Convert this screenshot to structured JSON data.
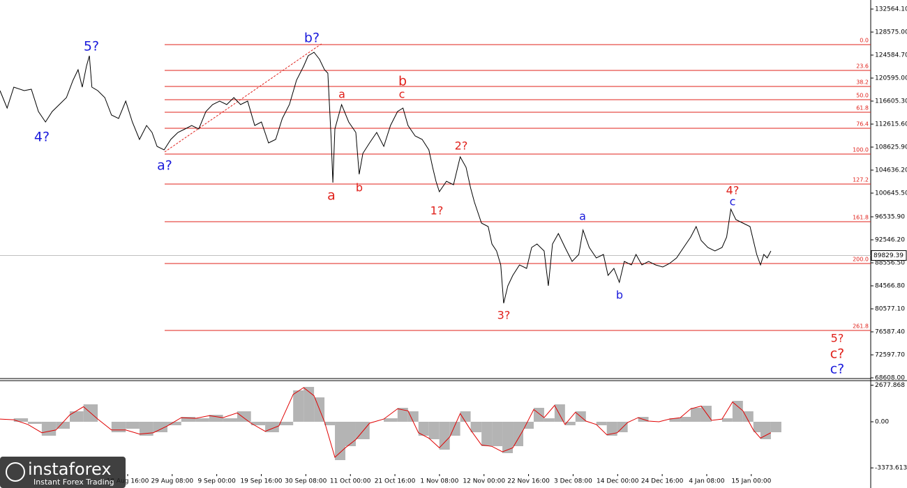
{
  "chart_data": [
    {
      "type": "line",
      "color": "#000000",
      "x": [
        -29.9,
        -28.2,
        -26.6,
        -24.1,
        -22.4,
        -20.7,
        -19.0,
        -17.4,
        -15.7,
        -14.0,
        -12.4,
        -11.2,
        -10.2,
        -9.2,
        -8.5,
        -7.9,
        -6.5,
        -4.8,
        -3.2,
        -1.5,
        0.2,
        1.8,
        3.5,
        5.2,
        6.5,
        7.7,
        9.4,
        11.0,
        12.7,
        14.4,
        16.0,
        17.7,
        19.4,
        21.0,
        22.7,
        24.4,
        26.1,
        27.7,
        29.4,
        31.1,
        32.7,
        34.4,
        36.1,
        37.7,
        39.4,
        41.1,
        42.8,
        43.9,
        45.3,
        46.6,
        47.8,
        48.6,
        49.4,
        49.8,
        50.3,
        51.9,
        53.6,
        55.3,
        56.1,
        57.0,
        58.6,
        60.3,
        62.0,
        63.6,
        65.3,
        66.6,
        67.8,
        69.5,
        71.2,
        72.8,
        73.7,
        74.5,
        75.3,
        77.0,
        78.7,
        80.3,
        81.7,
        82.8,
        83.7,
        85.4,
        87.0,
        87.9,
        89.0,
        90.0,
        90.7,
        91.7,
        92.9,
        94.5,
        96.2,
        97.4,
        98.7,
        100.4,
        101.4,
        102.4,
        103.8,
        105.4,
        107.1,
        108.7,
        109.7,
        111.2,
        112.9,
        114.6,
        115.7,
        117.1,
        118.4,
        119.6,
        121.3,
        122.4,
        123.8,
        125.4,
        127.1,
        128.8,
        130.4,
        132.1,
        133.8,
        135.5,
        136.8,
        138.0,
        139.6,
        141.3,
        143.0,
        144.1,
        145.1,
        146.3,
        148.0,
        149.7,
        150.5,
        151.3,
        152.2,
        153.0,
        153.8,
        154.7
      ],
      "values": [
        118420,
        115400,
        119020,
        118420,
        118660,
        114790,
        112980,
        114790,
        116000,
        117210,
        120230,
        122050,
        119020,
        122650,
        124460,
        119020,
        118420,
        117210,
        114190,
        113580,
        116610,
        112980,
        109960,
        112370,
        111170,
        108750,
        108140,
        109960,
        111170,
        111770,
        112370,
        111770,
        114790,
        116000,
        116610,
        116000,
        117210,
        116000,
        116610,
        112370,
        112980,
        109350,
        109960,
        113580,
        116000,
        120230,
        122650,
        124460,
        125070,
        123860,
        122050,
        121440,
        109960,
        102460,
        111770,
        116000,
        112980,
        111170,
        103910,
        107540,
        109350,
        111170,
        108750,
        112370,
        114790,
        115400,
        112370,
        110560,
        109960,
        108140,
        105120,
        102700,
        100890,
        102700,
        102100,
        106930,
        105120,
        101490,
        99080,
        95450,
        94840,
        91820,
        90610,
        88190,
        81540,
        84570,
        86380,
        88190,
        87590,
        91220,
        91820,
        90610,
        84570,
        91820,
        93630,
        91220,
        88800,
        90010,
        94240,
        91220,
        89400,
        90010,
        86380,
        87590,
        85170,
        88800,
        88190,
        90010,
        88190,
        88800,
        88190,
        87830,
        88440,
        89400,
        91220,
        93030,
        94840,
        92430,
        91220,
        90610,
        91220,
        93030,
        97870,
        96050,
        95450,
        94840,
        92430,
        90010,
        88190,
        90010,
        89400,
        90610
      ],
      "xlim": [
        -29.9,
        178.6
      ],
      "ylim": [
        68487,
        134136
      ],
      "yticks": [
        {
          "value": 132564.1,
          "label": "132564.10"
        },
        {
          "value": 128575,
          "label": "128575.00"
        },
        {
          "value": 124584.7,
          "label": "124584.70"
        },
        {
          "value": 120595,
          "label": "120595.00"
        },
        {
          "value": 116605.3,
          "label": "116605.30"
        },
        {
          "value": 112615.6,
          "label": "112615.60"
        },
        {
          "value": 108625.9,
          "label": "108625.90"
        },
        {
          "value": 104636.2,
          "label": "104636.20"
        },
        {
          "value": 100645.5,
          "label": "100645.50"
        },
        {
          "value": 96535.9,
          "label": "96535.90"
        },
        {
          "value": 92546.2,
          "label": "92546.20"
        },
        {
          "value": 88556.5,
          "label": "88556.50"
        },
        {
          "value": 84566.8,
          "label": "84566.80"
        },
        {
          "value": 80577.1,
          "label": "80577.10"
        },
        {
          "value": 76587.4,
          "label": "76587.40"
        },
        {
          "value": 72597.7,
          "label": "72597.70"
        },
        {
          "value": 68608,
          "label": "68608.00"
        }
      ],
      "xticks": [
        {
          "value": 0.667,
          "label": "18 Aug 16:00"
        },
        {
          "value": 11.333,
          "label": "29 Aug 08:00"
        },
        {
          "value": 22,
          "label": "9 Sep 00:00"
        },
        {
          "value": 32.667,
          "label": "19 Sep 16:00"
        },
        {
          "value": 43.333,
          "label": "30 Sep 08:00"
        },
        {
          "value": 54,
          "label": "11 Oct 00:00"
        },
        {
          "value": 64.667,
          "label": "21 Oct 16:00"
        },
        {
          "value": 75.333,
          "label": "1 Nov 08:00"
        },
        {
          "value": 86,
          "label": "12 Nov 00:00"
        },
        {
          "value": 96.667,
          "label": "22 Nov 16:00"
        },
        {
          "value": 107.333,
          "label": "3 Dec 08:00"
        },
        {
          "value": 118,
          "label": "14 Dec 00:00"
        },
        {
          "value": 128.667,
          "label": "24 Dec 16:00"
        },
        {
          "value": 139.333,
          "label": "4 Jan 08:00"
        },
        {
          "value": 150,
          "label": "15 Jan 00:00"
        }
      ],
      "current_price": 89829.39,
      "fib_color": "#e0201a",
      "fib_levels": [
        {
          "label": "0.0",
          "value": 126398
        },
        {
          "label": "23.6",
          "value": 121925
        },
        {
          "label": "38.2",
          "value": 119144
        },
        {
          "label": "50.0",
          "value": 116847
        },
        {
          "label": "61.8",
          "value": 114671
        },
        {
          "label": "76.4",
          "value": 111890
        },
        {
          "label": "100.0",
          "value": 107417
        },
        {
          "label": "127.2",
          "value": 102218
        },
        {
          "label": "161.8",
          "value": 95690
        },
        {
          "label": "200.0",
          "value": 88436
        },
        {
          "label": "261.8",
          "value": 76830
        }
      ],
      "annotations": [
        {
          "text": "5?",
          "color": "#1a1adb"
        },
        {
          "text": "4?",
          "color": "#1a1adb"
        },
        {
          "text": "a?",
          "color": "#1a1adb"
        },
        {
          "text": "b?",
          "color": "#1a1adb"
        },
        {
          "text": "a",
          "color": "#e0201a"
        },
        {
          "text": "a",
          "color": "#e0201a"
        },
        {
          "text": "b",
          "color": "#e0201a"
        },
        {
          "text": "b",
          "color": "#e0201a"
        },
        {
          "text": "c",
          "color": "#e0201a"
        },
        {
          "text": "2?",
          "color": "#e0201a"
        },
        {
          "text": "1?",
          "color": "#e0201a"
        },
        {
          "text": "3?",
          "color": "#e0201a"
        },
        {
          "text": "a",
          "color": "#1a1adb"
        },
        {
          "text": "b",
          "color": "#1a1adb"
        },
        {
          "text": "4?",
          "color": "#e0201a"
        },
        {
          "text": "c",
          "color": "#1a1adb"
        },
        {
          "text": "5?",
          "color": "#e0201a"
        },
        {
          "text": "c?",
          "color": "#e0201a"
        },
        {
          "text": "c?",
          "color": "#1a1adb"
        }
      ],
      "watermark": {
        "brand": "instaforex",
        "tagline": "Instant Forex Trading"
      }
    },
    {
      "type": "bar",
      "color": "#b4b4b4",
      "signal_color": "#e00000",
      "x": [
        -29.9,
        -26.6,
        -23.2,
        -19.9,
        -16.5,
        -13.2,
        -9.9,
        -6.5,
        -3.2,
        0.2,
        3.5,
        6.8,
        10.2,
        13.5,
        16.9,
        20.2,
        23.5,
        26.9,
        30.2,
        33.6,
        36.9,
        40.3,
        42.8,
        45.3,
        47.8,
        50.3,
        52.8,
        55.3,
        58.6,
        62.0,
        65.3,
        67.8,
        70.3,
        72.8,
        75.3,
        77.8,
        80.3,
        82.8,
        85.4,
        87.9,
        90.4,
        92.9,
        95.4,
        97.9,
        100.4,
        102.9,
        105.4,
        107.9,
        110.4,
        112.9,
        115.4,
        117.9,
        120.4,
        122.9,
        125.4,
        127.9,
        130.4,
        133.0,
        135.5,
        138.0,
        140.5,
        143.0,
        145.5,
        148.0,
        150.5,
        152.2,
        154.7
      ],
      "values": [
        0,
        255,
        -153,
        -1020,
        -510,
        765,
        1275,
        0,
        -765,
        -510,
        -1020,
        -765,
        -255,
        357,
        255,
        510,
        255,
        765,
        -255,
        -765,
        -255,
        2295,
        2550,
        1785,
        -255,
        -2805,
        -1785,
        -1275,
        0,
        255,
        1020,
        765,
        -1020,
        -1275,
        -2040,
        -1020,
        765,
        -765,
        -1785,
        -1785,
        -2295,
        -1785,
        -510,
        1020,
        255,
        1275,
        -255,
        765,
        0,
        -255,
        -1020,
        -765,
        0,
        357,
        0,
        0,
        255,
        357,
        1020,
        1173,
        0,
        255,
        1530,
        765,
        -765,
        -1275,
        -765
      ],
      "signal_values": [
        200,
        150,
        -200,
        -800,
        -600,
        500,
        1100,
        200,
        -600,
        -600,
        -900,
        -800,
        -300,
        300,
        250,
        450,
        300,
        650,
        -100,
        -700,
        -300,
        2000,
        2500,
        1900,
        0,
        -2600,
        -1900,
        -1300,
        -100,
        200,
        950,
        800,
        -800,
        -1200,
        -1900,
        -1100,
        600,
        -600,
        -1700,
        -1800,
        -2200,
        -1900,
        -600,
        900,
        300,
        1200,
        -200,
        700,
        50,
        -200,
        -950,
        -800,
        -50,
        300,
        50,
        0,
        200,
        300,
        950,
        1150,
        100,
        200,
        1450,
        800,
        -600,
        -1200,
        -800
      ],
      "ylim": [
        -4845,
        3009
      ],
      "yticks": [
        2677.868,
        {
          "value": 0,
          "label": "0.00"
        },
        -3373.613
      ]
    }
  ]
}
